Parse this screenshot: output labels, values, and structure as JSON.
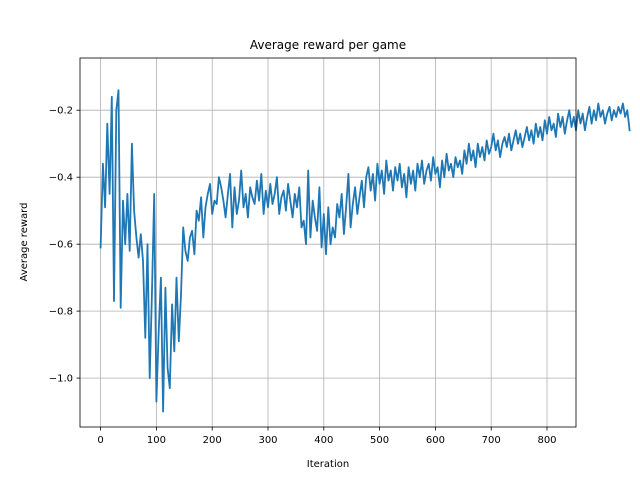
{
  "chart_data": {
    "type": "line",
    "title": "Average reward per game",
    "xlabel": "Iteration",
    "ylabel": "Average reward",
    "xlim": [
      -37,
      852
    ],
    "ylim": [
      -1.146,
      -0.044
    ],
    "xticks": [
      0,
      100,
      200,
      300,
      400,
      500,
      600,
      700,
      800
    ],
    "yticks": [
      -1.0,
      -0.8,
      -0.6,
      -0.4,
      -0.2
    ],
    "xtick_labels": [
      "0",
      "100",
      "200",
      "300",
      "400",
      "500",
      "600",
      "700",
      "800"
    ],
    "ytick_labels": [
      "−1.0",
      "−0.8",
      "−0.6",
      "−0.4",
      "−0.2"
    ],
    "grid": true,
    "legend": "none",
    "series": [
      {
        "color": "#1f77b4",
        "x_start": 0,
        "x_step": 4,
        "values": [
          -0.61,
          -0.36,
          -0.49,
          -0.24,
          -0.45,
          -0.16,
          -0.77,
          -0.2,
          -0.14,
          -0.79,
          -0.47,
          -0.6,
          -0.45,
          -0.62,
          -0.3,
          -0.5,
          -0.58,
          -0.64,
          -0.57,
          -0.65,
          -0.88,
          -0.6,
          -1.0,
          -0.74,
          -0.45,
          -1.07,
          -0.86,
          -0.7,
          -1.1,
          -0.73,
          -0.97,
          -1.03,
          -0.78,
          -0.92,
          -0.7,
          -0.89,
          -0.75,
          -0.55,
          -0.62,
          -0.65,
          -0.58,
          -0.56,
          -0.63,
          -0.5,
          -0.53,
          -0.46,
          -0.58,
          -0.49,
          -0.45,
          -0.42,
          -0.51,
          -0.47,
          -0.48,
          -0.4,
          -0.43,
          -0.47,
          -0.52,
          -0.45,
          -0.39,
          -0.55,
          -0.43,
          -0.51,
          -0.47,
          -0.38,
          -0.49,
          -0.45,
          -0.52,
          -0.43,
          -0.46,
          -0.48,
          -0.41,
          -0.47,
          -0.39,
          -0.51,
          -0.44,
          -0.49,
          -0.42,
          -0.48,
          -0.45,
          -0.4,
          -0.51,
          -0.46,
          -0.44,
          -0.5,
          -0.42,
          -0.47,
          -0.52,
          -0.45,
          -0.49,
          -0.43,
          -0.55,
          -0.53,
          -0.6,
          -0.38,
          -0.58,
          -0.47,
          -0.52,
          -0.56,
          -0.43,
          -0.61,
          -0.51,
          -0.63,
          -0.49,
          -0.6,
          -0.55,
          -0.58,
          -0.48,
          -0.52,
          -0.45,
          -0.57,
          -0.49,
          -0.39,
          -0.55,
          -0.48,
          -0.43,
          -0.51,
          -0.46,
          -0.41,
          -0.49,
          -0.4,
          -0.37,
          -0.44,
          -0.39,
          -0.47,
          -0.36,
          -0.42,
          -0.38,
          -0.45,
          -0.35,
          -0.41,
          -0.38,
          -0.44,
          -0.37,
          -0.41,
          -0.36,
          -0.43,
          -0.39,
          -0.46,
          -0.37,
          -0.42,
          -0.38,
          -0.44,
          -0.36,
          -0.4,
          -0.35,
          -0.42,
          -0.38,
          -0.36,
          -0.41,
          -0.34,
          -0.39,
          -0.37,
          -0.43,
          -0.35,
          -0.4,
          -0.33,
          -0.38,
          -0.36,
          -0.4,
          -0.34,
          -0.37,
          -0.35,
          -0.39,
          -0.32,
          -0.36,
          -0.3,
          -0.35,
          -0.32,
          -0.37,
          -0.3,
          -0.34,
          -0.31,
          -0.35,
          -0.29,
          -0.33,
          -0.31,
          -0.27,
          -0.32,
          -0.29,
          -0.34,
          -0.3,
          -0.28,
          -0.31,
          -0.27,
          -0.32,
          -0.29,
          -0.26,
          -0.3,
          -0.27,
          -0.31,
          -0.28,
          -0.25,
          -0.29,
          -0.26,
          -0.3,
          -0.24,
          -0.28,
          -0.25,
          -0.29,
          -0.23,
          -0.27,
          -0.22,
          -0.26,
          -0.24,
          -0.28,
          -0.21,
          -0.25,
          -0.22,
          -0.27,
          -0.23,
          -0.2,
          -0.25,
          -0.22,
          -0.26,
          -0.2,
          -0.24,
          -0.21,
          -0.26,
          -0.22,
          -0.19,
          -0.24,
          -0.2,
          -0.23,
          -0.18,
          -0.22,
          -0.2,
          -0.24,
          -0.21,
          -0.19,
          -0.23,
          -0.2,
          -0.22,
          -0.19,
          -0.21,
          -0.18,
          -0.22,
          -0.2,
          -0.26
        ]
      }
    ]
  }
}
